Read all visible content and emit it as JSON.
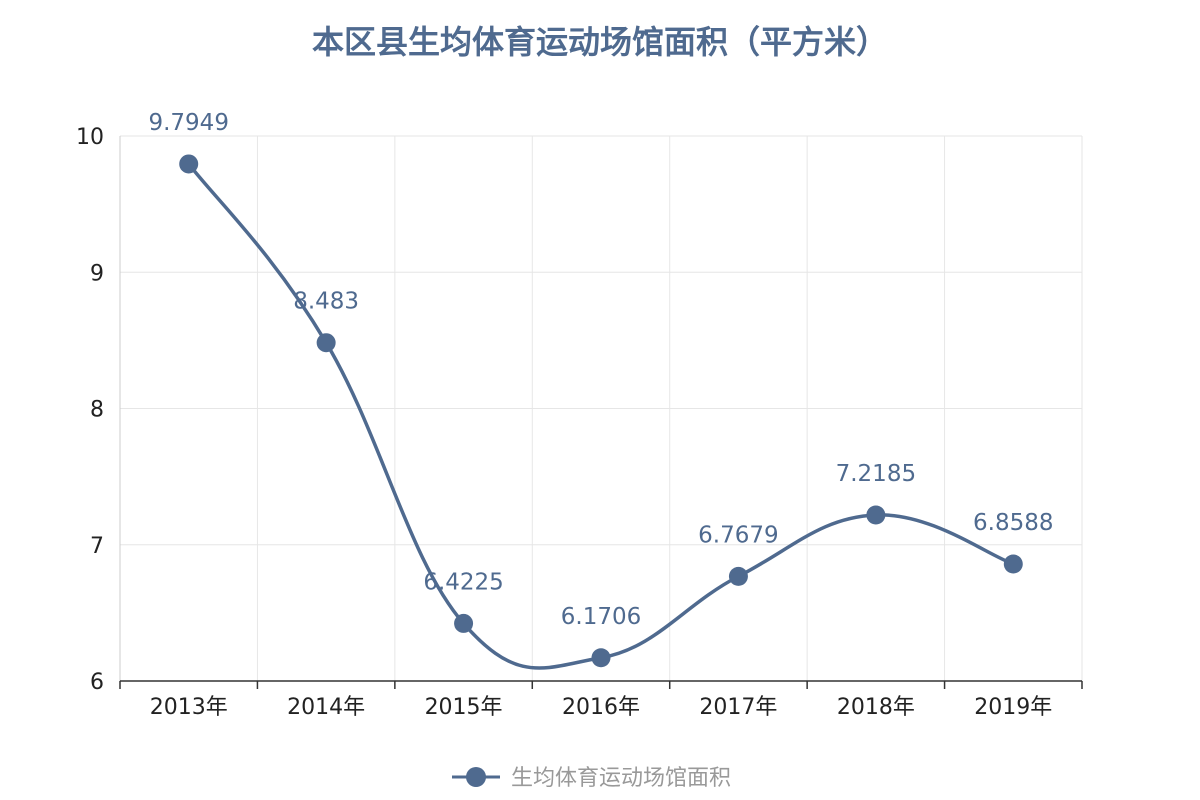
{
  "chart_data": {
    "type": "line",
    "title": "本区县生均体育运动场馆面积（平方米）",
    "categories": [
      "2013年",
      "2014年",
      "2015年",
      "2016年",
      "2017年",
      "2018年",
      "2019年"
    ],
    "series": [
      {
        "name": "生均体育运动场馆面积",
        "values": [
          9.7949,
          8.483,
          6.4225,
          6.1706,
          6.7679,
          7.2185,
          6.8588
        ],
        "labels": [
          "9.7949",
          "8.483",
          "6.4225",
          "6.1706",
          "6.7679",
          "7.2185",
          "6.8588"
        ],
        "color": "#4f6a8f"
      }
    ],
    "ylim": [
      6,
      10
    ],
    "yticks": [
      "6",
      "7",
      "8",
      "9",
      "10"
    ],
    "smooth": true,
    "grid": true,
    "legend_position": "bottom-center"
  },
  "colors": {
    "title": "#4f6a8f",
    "series": "#4f6a8f",
    "grid": "#e6e6e6",
    "axis": "#333333",
    "legend_text": "#999999"
  }
}
